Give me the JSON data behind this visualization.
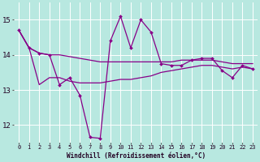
{
  "background_color": "#b8e8e0",
  "grid_color": "#ffffff",
  "line_color": "#880088",
  "x": [
    0,
    1,
    2,
    3,
    4,
    5,
    6,
    7,
    8,
    9,
    10,
    11,
    12,
    13,
    14,
    15,
    16,
    17,
    18,
    19,
    20,
    21,
    22,
    23
  ],
  "line1_markers": [
    14.7,
    14.2,
    14.05,
    14.0,
    13.15,
    13.35,
    12.85,
    11.65,
    11.62,
    14.4,
    15.1,
    14.2,
    15.0,
    14.65,
    13.75,
    13.7,
    13.7,
    13.85,
    13.9,
    13.9,
    13.55,
    13.35,
    13.7,
    13.6
  ],
  "line2_upper": [
    14.7,
    14.2,
    14.05,
    14.0,
    14.0,
    13.95,
    13.9,
    13.85,
    13.8,
    13.8,
    13.8,
    13.8,
    13.8,
    13.8,
    13.8,
    13.8,
    13.85,
    13.85,
    13.85,
    13.85,
    13.8,
    13.75,
    13.75,
    13.75
  ],
  "line3_lower": [
    14.7,
    14.2,
    13.15,
    13.35,
    13.35,
    13.25,
    13.2,
    13.2,
    13.2,
    13.25,
    13.3,
    13.3,
    13.35,
    13.4,
    13.5,
    13.55,
    13.6,
    13.65,
    13.7,
    13.7,
    13.65,
    13.6,
    13.65,
    13.6
  ],
  "ylim_min": 11.5,
  "ylim_max": 15.5,
  "yticks": [
    12,
    13,
    14,
    15
  ],
  "xlabel": "Windchill (Refroidissement éolien,°C)"
}
